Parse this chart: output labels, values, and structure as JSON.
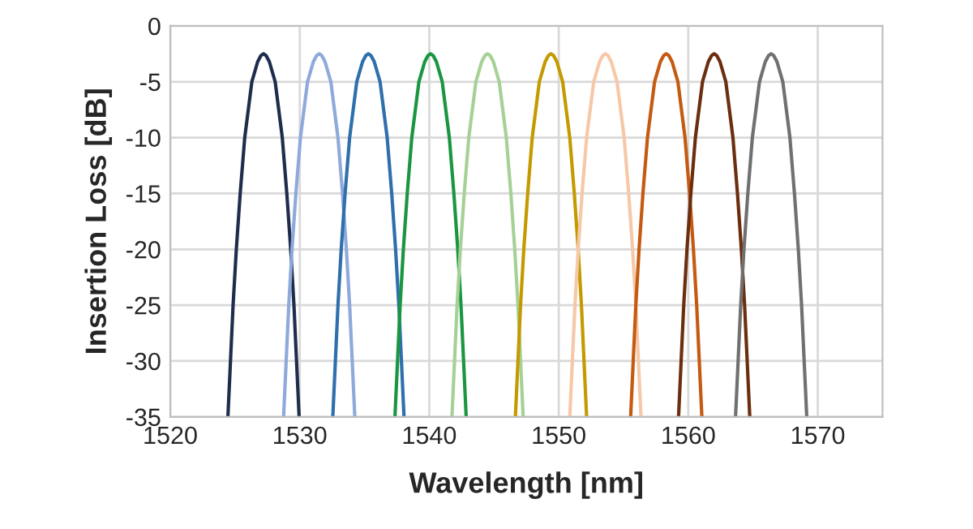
{
  "chart_data": {
    "type": "line",
    "xlabel": "Wavelength [nm]",
    "ylabel": "Insertion Loss [dB]",
    "xlim": [
      1520,
      1575
    ],
    "xticks": [
      1520,
      1530,
      1540,
      1550,
      1560,
      1570
    ],
    "ylim": [
      -35,
      0
    ],
    "yticks": [
      -35,
      -30,
      -25,
      -20,
      -15,
      -10,
      -5,
      0
    ],
    "grid": true,
    "marker": "none",
    "line_style": "solid",
    "series": [
      {
        "color": "#1f2d4d",
        "x": [
          1524.45,
          1524.65,
          1524.85,
          1525.1,
          1525.4,
          1525.75,
          1526.3,
          1526.75,
          1527.0,
          1527.2,
          1527.4,
          1527.65,
          1528.1,
          1528.65,
          1529.0,
          1529.3,
          1529.55,
          1529.75,
          1529.95
        ],
        "values": [
          -35,
          -30,
          -25,
          -20,
          -15,
          -10,
          -5,
          -3.2,
          -2.65,
          -2.5,
          -2.65,
          -3.2,
          -5,
          -10,
          -15,
          -20,
          -25,
          -30,
          -35
        ]
      },
      {
        "color": "#8ea9db",
        "x": [
          1528.75,
          1528.95,
          1529.15,
          1529.4,
          1529.7,
          1530.05,
          1530.6,
          1531.05,
          1531.3,
          1531.5,
          1531.7,
          1531.95,
          1532.4,
          1532.95,
          1533.3,
          1533.6,
          1533.85,
          1534.05,
          1534.25
        ],
        "values": [
          -35,
          -30,
          -25,
          -20,
          -15,
          -10,
          -5,
          -3.2,
          -2.65,
          -2.5,
          -2.65,
          -3.2,
          -5,
          -10,
          -15,
          -20,
          -25,
          -30,
          -35
        ]
      },
      {
        "color": "#2e6fac",
        "x": [
          1532.55,
          1532.75,
          1532.95,
          1533.2,
          1533.5,
          1533.85,
          1534.4,
          1534.85,
          1535.1,
          1535.3,
          1535.5,
          1535.75,
          1536.2,
          1536.75,
          1537.1,
          1537.4,
          1537.65,
          1537.85,
          1538.05
        ],
        "values": [
          -35,
          -30,
          -25,
          -20,
          -15,
          -10,
          -5,
          -3.2,
          -2.65,
          -2.5,
          -2.65,
          -3.2,
          -5,
          -10,
          -15,
          -20,
          -25,
          -30,
          -35
        ]
      },
      {
        "color": "#1a9641",
        "x": [
          1537.35,
          1537.55,
          1537.75,
          1538.0,
          1538.3,
          1538.65,
          1539.2,
          1539.65,
          1539.9,
          1540.1,
          1540.3,
          1540.55,
          1541.0,
          1541.55,
          1541.9,
          1542.2,
          1542.45,
          1542.65,
          1542.85
        ],
        "values": [
          -35,
          -30,
          -25,
          -20,
          -15,
          -10,
          -5,
          -3.2,
          -2.65,
          -2.5,
          -2.65,
          -3.2,
          -5,
          -10,
          -15,
          -20,
          -25,
          -30,
          -35
        ]
      },
      {
        "color": "#a6d196",
        "x": [
          1541.75,
          1541.95,
          1542.15,
          1542.4,
          1542.7,
          1543.05,
          1543.6,
          1544.05,
          1544.3,
          1544.5,
          1544.7,
          1544.95,
          1545.4,
          1545.95,
          1546.3,
          1546.6,
          1546.85,
          1547.05,
          1547.25
        ],
        "values": [
          -35,
          -30,
          -25,
          -20,
          -15,
          -10,
          -5,
          -3.2,
          -2.65,
          -2.5,
          -2.65,
          -3.2,
          -5,
          -10,
          -15,
          -20,
          -25,
          -30,
          -35
        ]
      },
      {
        "color": "#c49a00",
        "x": [
          1546.65,
          1546.85,
          1547.05,
          1547.3,
          1547.6,
          1547.95,
          1548.5,
          1548.95,
          1549.2,
          1549.4,
          1549.6,
          1549.85,
          1550.3,
          1550.85,
          1551.2,
          1551.5,
          1551.75,
          1551.95,
          1552.15
        ],
        "values": [
          -35,
          -30,
          -25,
          -20,
          -15,
          -10,
          -5,
          -3.2,
          -2.65,
          -2.5,
          -2.65,
          -3.2,
          -5,
          -10,
          -15,
          -20,
          -25,
          -30,
          -35
        ]
      },
      {
        "color": "#f6c8a8",
        "x": [
          1550.85,
          1551.05,
          1551.25,
          1551.5,
          1551.8,
          1552.15,
          1552.7,
          1553.15,
          1553.4,
          1553.6,
          1553.8,
          1554.05,
          1554.5,
          1555.05,
          1555.4,
          1555.7,
          1555.95,
          1556.15,
          1556.35
        ],
        "values": [
          -35,
          -30,
          -25,
          -20,
          -15,
          -10,
          -5,
          -3.2,
          -2.65,
          -2.5,
          -2.65,
          -3.2,
          -5,
          -10,
          -15,
          -20,
          -25,
          -30,
          -35
        ]
      },
      {
        "color": "#c55a11",
        "x": [
          1555.55,
          1555.75,
          1555.95,
          1556.2,
          1556.5,
          1556.85,
          1557.4,
          1557.85,
          1558.1,
          1558.3,
          1558.5,
          1558.75,
          1559.2,
          1559.75,
          1560.1,
          1560.4,
          1560.65,
          1560.85,
          1561.05
        ],
        "values": [
          -35,
          -30,
          -25,
          -20,
          -15,
          -10,
          -5,
          -3.2,
          -2.65,
          -2.5,
          -2.65,
          -3.2,
          -5,
          -10,
          -15,
          -20,
          -25,
          -30,
          -35
        ]
      },
      {
        "color": "#6b2e0e",
        "x": [
          1559.25,
          1559.45,
          1559.65,
          1559.9,
          1560.2,
          1560.55,
          1561.1,
          1561.55,
          1561.8,
          1562.0,
          1562.2,
          1562.45,
          1562.9,
          1563.45,
          1563.8,
          1564.1,
          1564.35,
          1564.55,
          1564.75
        ],
        "values": [
          -35,
          -30,
          -25,
          -20,
          -15,
          -10,
          -5,
          -3.2,
          -2.65,
          -2.5,
          -2.65,
          -3.2,
          -5,
          -10,
          -15,
          -20,
          -25,
          -30,
          -35
        ]
      },
      {
        "color": "#707070",
        "x": [
          1563.65,
          1563.85,
          1564.05,
          1564.3,
          1564.6,
          1564.95,
          1565.5,
          1565.95,
          1566.2,
          1566.4,
          1566.6,
          1566.85,
          1567.3,
          1567.85,
          1568.2,
          1568.5,
          1568.75,
          1568.95,
          1569.15
        ],
        "values": [
          -35,
          -30,
          -25,
          -20,
          -15,
          -10,
          -5,
          -3.2,
          -2.65,
          -2.5,
          -2.65,
          -3.2,
          -5,
          -10,
          -15,
          -20,
          -25,
          -30,
          -35
        ]
      }
    ]
  }
}
